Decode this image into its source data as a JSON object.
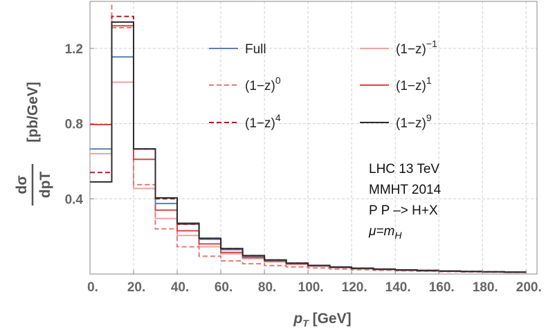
{
  "chart_data": {
    "type": "line",
    "step": true,
    "xlabel": "p",
    "xlabel_sub": "T",
    "xlabel_unit": " [GeV]",
    "ylabel_numerator": "dσ",
    "ylabel_denominator": "dpT",
    "ylabel_unit": "[pb/GeV]",
    "xlim": [
      0,
      205
    ],
    "ylim": [
      0,
      1.45
    ],
    "x_ticks": [
      0,
      20,
      40,
      60,
      80,
      100,
      120,
      140,
      160,
      180,
      200
    ],
    "x_tick_labels": [
      "0.",
      "20.",
      "40.",
      "60.",
      "80.",
      "100.",
      "120.",
      "140.",
      "160.",
      "180.",
      "200."
    ],
    "y_ticks": [
      0.4,
      0.8,
      1.2
    ],
    "y_tick_labels": [
      "0.4",
      "0.8",
      "1.2"
    ],
    "grid": true,
    "legend_position": "top-right",
    "bin_edges": [
      0,
      10,
      20,
      30,
      40,
      50,
      60,
      70,
      80,
      90,
      100,
      110,
      120,
      130,
      140,
      150,
      160,
      170,
      180,
      190,
      200
    ],
    "series": [
      {
        "name": "Full",
        "label_base": "Full",
        "label_sup": "",
        "color": "#5b7fb5",
        "dash": "solid",
        "values": [
          0.665,
          1.155,
          0.665,
          0.375,
          0.265,
          0.185,
          0.13,
          0.095,
          0.073,
          0.057,
          0.045,
          0.036,
          0.03,
          0.025,
          0.021,
          0.018,
          0.015,
          0.013,
          0.011,
          0.01
        ]
      },
      {
        "name": "(1−z)^−1",
        "label_base": "(1−z)",
        "label_sup": "−1",
        "color": "#eba3a3",
        "dash": "solid",
        "values": [
          0.64,
          1.02,
          0.455,
          0.295,
          0.205,
          0.145,
          0.108,
          0.082,
          0.065,
          0.052,
          0.042,
          0.034,
          0.028,
          0.024,
          0.02,
          0.017,
          0.015,
          0.013,
          0.011,
          0.01
        ]
      },
      {
        "name": "(1−z)^0",
        "label_base": "(1−z)",
        "label_sup": "0",
        "color": "#e77878",
        "dash": "dashed",
        "values": [
          1.6,
          1.31,
          0.475,
          0.24,
          0.145,
          0.095,
          0.07,
          0.055,
          0.045,
          0.038,
          0.032,
          0.027,
          0.023,
          0.02,
          0.017,
          0.015,
          0.013,
          0.011,
          0.01,
          0.009
        ]
      },
      {
        "name": "(1−z)^1",
        "label_base": "(1−z)",
        "label_sup": "1",
        "color": "#d64545",
        "dash": "solid",
        "values": [
          0.795,
          1.32,
          0.61,
          0.34,
          0.23,
          0.16,
          0.115,
          0.088,
          0.068,
          0.054,
          0.043,
          0.035,
          0.029,
          0.024,
          0.02,
          0.017,
          0.015,
          0.013,
          0.011,
          0.01
        ]
      },
      {
        "name": "(1−z)^4",
        "label_base": "(1−z)",
        "label_sup": "4",
        "color": "#a82020",
        "dash": "dashed",
        "values": [
          0.54,
          1.37,
          0.665,
          0.4,
          0.265,
          0.19,
          0.135,
          0.098,
          0.075,
          0.058,
          0.046,
          0.037,
          0.031,
          0.026,
          0.022,
          0.019,
          0.016,
          0.014,
          0.012,
          0.01
        ]
      },
      {
        "name": "(1−z)^9",
        "label_base": "(1−z)",
        "label_sup": "9",
        "color": "#2b2b2b",
        "dash": "solid",
        "values": [
          0.49,
          1.34,
          0.665,
          0.405,
          0.27,
          0.19,
          0.135,
          0.098,
          0.075,
          0.058,
          0.046,
          0.037,
          0.031,
          0.026,
          0.022,
          0.019,
          0.016,
          0.014,
          0.012,
          0.01
        ]
      }
    ],
    "annotations": [
      "LHC 13 TeV",
      "MMHT 2014",
      "P P –> H+X"
    ],
    "annotation_mu": {
      "base": "μ=m",
      "sub": "H"
    }
  }
}
